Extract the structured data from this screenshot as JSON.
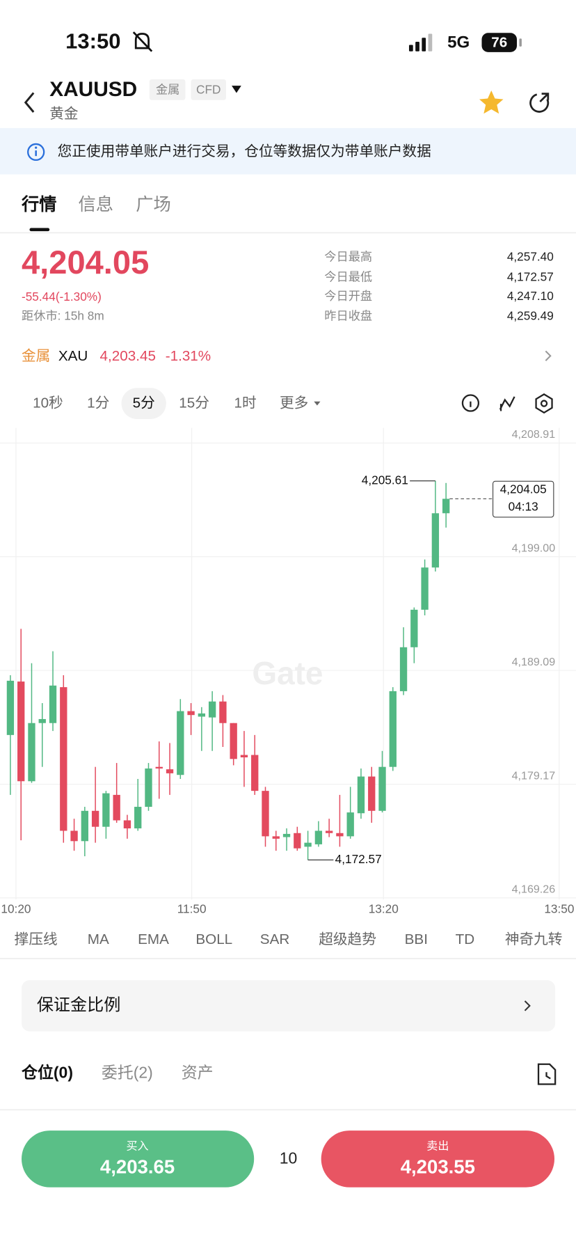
{
  "status_bar": {
    "time": "13:50",
    "network": "5G",
    "battery": "76"
  },
  "header": {
    "symbol": "XAUUSD",
    "tags": [
      "金属",
      "CFD"
    ],
    "subtitle": "黄金"
  },
  "notice": "您正使用带单账户进行交易，仓位等数据仅为带单账户数据",
  "tabs": [
    "行情",
    "信息",
    "广场"
  ],
  "quote": {
    "price": "4,204.05",
    "change": "-55.44(-1.30%)",
    "close_countdown": "距休市: 15h 8m",
    "stats": [
      {
        "label": "今日最高",
        "value": "4,257.40"
      },
      {
        "label": "今日最低",
        "value": "4,172.57"
      },
      {
        "label": "今日开盘",
        "value": "4,247.10"
      },
      {
        "label": "昨日收盘",
        "value": "4,259.49"
      }
    ]
  },
  "underlying": {
    "category": "金属",
    "symbol": "XAU",
    "price": "4,203.45",
    "change": "-1.31%"
  },
  "intervals": [
    "10秒",
    "1分",
    "5分",
    "15分",
    "1时",
    "更多"
  ],
  "selected_interval": 2,
  "chart_data": {
    "type": "candlestick",
    "watermark": "Gate",
    "up_color": "#52b883",
    "down_color": "#e34a5e",
    "x_labels": [
      "10:20",
      "11:50",
      "13:20",
      "13:50"
    ],
    "ylim": [
      4169.26,
      4208.91
    ],
    "yticks": [
      {
        "value": 4208.91,
        "label": "4,208.91"
      },
      {
        "value": 4199.0,
        "label": "4,199.00"
      },
      {
        "value": 4189.09,
        "label": "4,189.09"
      },
      {
        "value": 4179.17,
        "label": "4,179.17"
      },
      {
        "value": 4169.26,
        "label": "4,169.26"
      }
    ],
    "grid": true,
    "candles": [
      [
        4183.46,
        4188.67,
        4178.24,
        4188.19
      ],
      [
        4188.12,
        4192.71,
        4174.28,
        4179.43
      ],
      [
        4179.43,
        4189.72,
        4179.29,
        4184.5
      ],
      [
        4184.5,
        4186.24,
        4180.68,
        4184.85
      ],
      [
        4184.5,
        4190.76,
        4183.81,
        4187.77
      ],
      [
        4187.63,
        4188.67,
        4174.07,
        4175.11
      ],
      [
        4175.11,
        4176.16,
        4173.37,
        4174.21
      ],
      [
        4174.21,
        4177.2,
        4172.89,
        4176.85
      ],
      [
        4176.85,
        4180.68,
        4174.07,
        4175.46
      ],
      [
        4175.46,
        4178.59,
        4174.42,
        4178.38
      ],
      [
        4178.24,
        4181.02,
        4175.81,
        4176.02
      ],
      [
        4176.02,
        4176.5,
        4174.42,
        4175.32
      ],
      [
        4175.32,
        4179.63,
        4175.11,
        4177.2
      ],
      [
        4177.2,
        4181.02,
        4176.85,
        4180.54
      ],
      [
        4180.68,
        4182.9,
        4177.9,
        4180.54
      ],
      [
        4180.47,
        4182.76,
        4178.24,
        4180.12
      ],
      [
        4179.98,
        4186.59,
        4179.63,
        4185.54
      ],
      [
        4185.54,
        4186.24,
        4183.46,
        4185.2
      ],
      [
        4185.06,
        4185.89,
        4182.07,
        4185.34
      ],
      [
        4184.99,
        4187.28,
        4182.07,
        4186.38
      ],
      [
        4186.38,
        4186.94,
        4182.42,
        4184.5
      ],
      [
        4184.5,
        4184.5,
        4180.82,
        4181.37
      ],
      [
        4181.72,
        4183.81,
        4178.94,
        4181.51
      ],
      [
        4181.72,
        4183.46,
        4178.24,
        4178.59
      ],
      [
        4178.59,
        4178.94,
        4173.72,
        4174.63
      ],
      [
        4174.63,
        4175.11,
        4173.37,
        4174.42
      ],
      [
        4174.56,
        4175.32,
        4173.37,
        4174.84
      ],
      [
        4174.91,
        4175.46,
        4173.37,
        4173.58
      ],
      [
        4173.72,
        4175.11,
        4172.57,
        4174.07
      ],
      [
        4173.93,
        4175.95,
        4173.72,
        4175.11
      ],
      [
        4175.11,
        4176.16,
        4174.56,
        4174.91
      ],
      [
        4174.91,
        4178.24,
        4173.72,
        4174.63
      ],
      [
        4174.63,
        4178.94,
        4174.42,
        4176.71
      ],
      [
        4176.64,
        4180.54,
        4176.16,
        4179.84
      ],
      [
        4179.84,
        4180.68,
        4175.81,
        4176.85
      ],
      [
        4176.85,
        4182.07,
        4176.71,
        4180.68
      ],
      [
        4180.68,
        4187.63,
        4180.33,
        4187.28
      ],
      [
        4187.28,
        4192.85,
        4186.94,
        4191.11
      ],
      [
        4191.11,
        4194.58,
        4189.72,
        4194.38
      ],
      [
        4194.38,
        4198.76,
        4193.89,
        4198.06
      ],
      [
        4198.06,
        4205.61,
        4197.71,
        4202.79
      ],
      [
        4202.79,
        4205.43,
        4201.54,
        4204.05
      ]
    ],
    "high_label": {
      "value": 4205.61,
      "label": "4,205.61"
    },
    "low_label": {
      "value": 4172.57,
      "label": "4,172.57"
    },
    "last_price": {
      "value": 4204.05,
      "label": "4,204.05",
      "time": "04:13"
    }
  },
  "indicators": [
    "撑压线",
    "MA",
    "EMA",
    "BOLL",
    "SAR",
    "超级趋势",
    "BBI",
    "TD",
    "神奇九转"
  ],
  "margin_ratio": "保证金比例",
  "position_tabs": [
    "仓位(0)",
    "委托(2)",
    "资产"
  ],
  "trade": {
    "buy": {
      "label": "买入",
      "price": "4,203.65"
    },
    "quantity": "10",
    "sell": {
      "label": "卖出",
      "price": "4,203.55"
    }
  }
}
